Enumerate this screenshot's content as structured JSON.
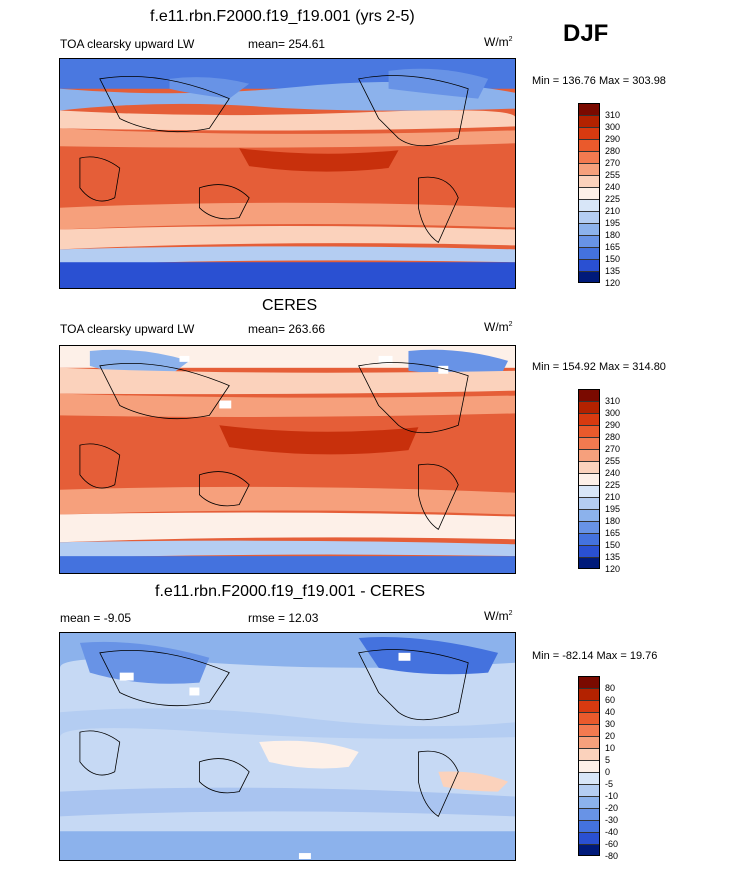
{
  "season": "DJF",
  "units_base": "W/m",
  "units_exp": "2",
  "panels": [
    {
      "title": "f.e11.rbn.F2000.f19_f19.001 (yrs 2-5)",
      "variable": "TOA clearsky upward LW",
      "stat": "mean= 254.61",
      "minmax": "Min = 136.76 Max = 303.98",
      "levels": [
        "310",
        "300",
        "290",
        "280",
        "270",
        "255",
        "240",
        "225",
        "210",
        "195",
        "180",
        "165",
        "150",
        "135",
        "120"
      ]
    },
    {
      "title": "CERES",
      "variable": "TOA clearsky upward LW",
      "stat": "mean= 263.66",
      "minmax": "Min = 154.92 Max = 314.80",
      "levels": [
        "310",
        "300",
        "290",
        "280",
        "270",
        "255",
        "240",
        "225",
        "210",
        "195",
        "180",
        "165",
        "150",
        "135",
        "120"
      ]
    },
    {
      "title": "f.e11.rbn.F2000.f19_f19.001 - CERES",
      "variable": "mean =  -9.05",
      "stat": "rmse =  12.03",
      "minmax": "Min = -82.14 Max =  19.76",
      "levels": [
        "80",
        "60",
        "40",
        "30",
        "20",
        "10",
        "5",
        "0",
        "-5",
        "-10",
        "-20",
        "-30",
        "-40",
        "-60",
        "-80"
      ]
    }
  ],
  "colors": {
    "abs_scale": [
      "#7a0a00",
      "#b32200",
      "#d83a10",
      "#ea5a2c",
      "#f37a50",
      "#f6a07c",
      "#fbd2bc",
      "#fdf0e8",
      "#d8e6f8",
      "#b4cdf2",
      "#8cb2ec",
      "#6893e6",
      "#4472de",
      "#2a50d2",
      "#1430b0",
      "#001a7a"
    ],
    "diff_scale": [
      "#7a0a00",
      "#b32200",
      "#d83a10",
      "#ea5a2c",
      "#f37a50",
      "#f6a07c",
      "#fbd2bc",
      "#fdf0e8",
      "#d8e6f8",
      "#b4cdf2",
      "#8cb2ec",
      "#6893e6",
      "#4472de",
      "#2a50d2",
      "#1430b0",
      "#001a7a"
    ]
  }
}
